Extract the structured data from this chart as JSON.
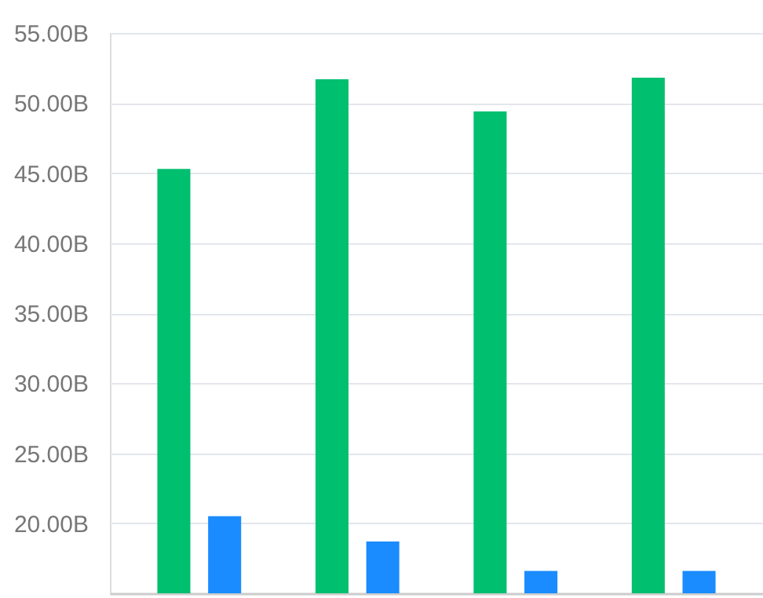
{
  "chart_data": {
    "type": "bar",
    "categories": [
      null,
      null,
      null,
      null
    ],
    "series": [
      {
        "color": "#00bf6f",
        "values": [
          45.3,
          51.7,
          49.4,
          51.8
        ]
      },
      {
        "color": "#1a8cff",
        "values": [
          20.5,
          18.7,
          16.6,
          16.6
        ]
      }
    ],
    "ylim": [
      15,
      55
    ],
    "yticks": [
      {
        "value": 20,
        "label": "20.00B"
      },
      {
        "value": 25,
        "label": "25.00B"
      },
      {
        "value": 30,
        "label": "30.00B"
      },
      {
        "value": 35,
        "label": "35.00B"
      },
      {
        "value": 40,
        "label": "40.00B"
      },
      {
        "value": 45,
        "label": "45.00B"
      },
      {
        "value": 50,
        "label": "50.00B"
      },
      {
        "value": 55,
        "label": "55.00B"
      }
    ],
    "grid": "y",
    "legend": false,
    "tick_labels": "y"
  }
}
